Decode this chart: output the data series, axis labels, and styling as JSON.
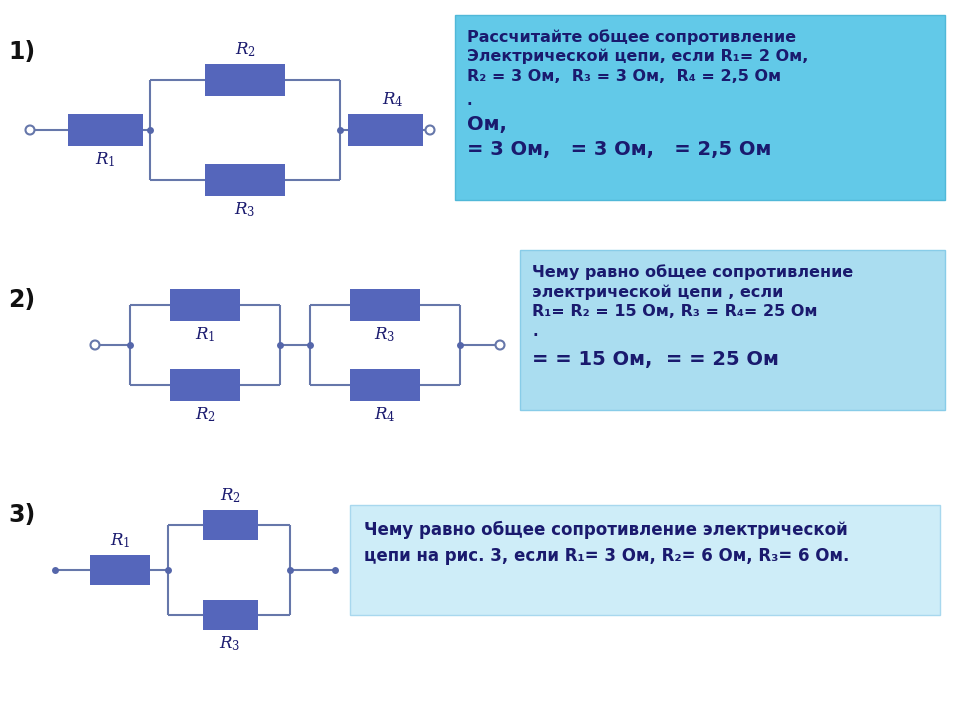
{
  "bg_color": "#ffffff",
  "resistor_color": "#5566bb",
  "line_color": "#6677aa",
  "dot_color": "#5566aa",
  "text_color": "#1a1a6e",
  "section1_label": "1)",
  "section2_label": "2)",
  "section3_label": "3)",
  "text1_line1": "Рассчитайте общее сопротивление",
  "text1_line2": "Электрической цепи, если R₁= 2 Ом,",
  "text1_line3": "R₂ = 3 Ом,  R₃ = 3 Ом,  R₄ = 2,5 Ом",
  "text1_line4": ".",
  "text1_line5": "Ом,",
  "text1_line6": "= 3 Ом,   = 3 Ом,   = 2,5 Ом",
  "text2_line1": "Чему равно общее сопротивление",
  "text2_line2": "электрической цепи , если",
  "text2_line3": "R₁= R₂ = 15 Ом, R₃ = R₄= 25 Ом",
  "text2_line4": ".",
  "text2_line5": "= = 15 Ом,  = = 25 Ом",
  "text3_line1": "Чему равно общее сопротивление электрической",
  "text3_line2": "цепи на рис. 3, если R₁= 3 Ом, R₂= 6 Ом, R₃= 6 Ом."
}
